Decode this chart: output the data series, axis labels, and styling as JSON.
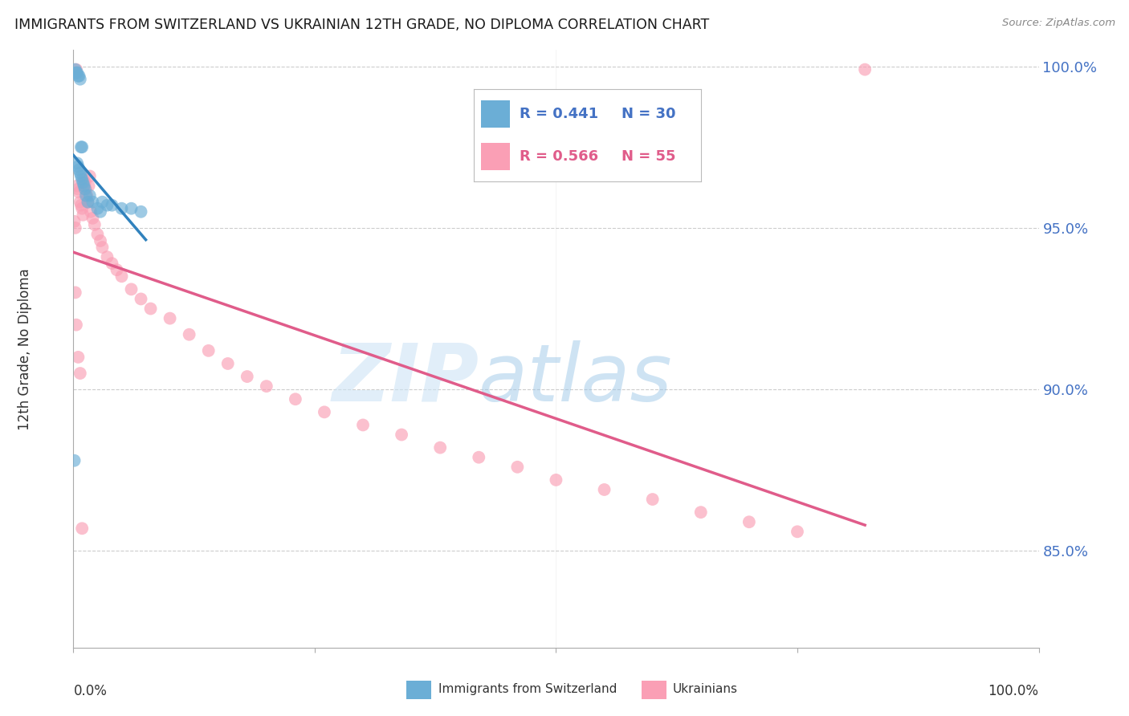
{
  "title": "IMMIGRANTS FROM SWITZERLAND VS UKRAINIAN 12TH GRADE, NO DIPLOMA CORRELATION CHART",
  "source": "Source: ZipAtlas.com",
  "ylabel": "12th Grade, No Diploma",
  "yaxis_values": [
    1.0,
    0.95,
    0.9,
    0.85
  ],
  "legend_blue_r": "R = 0.441",
  "legend_blue_n": "N = 30",
  "legend_pink_r": "R = 0.566",
  "legend_pink_n": "N = 55",
  "blue_color": "#6baed6",
  "pink_color": "#fa9fb5",
  "blue_line_color": "#3182bd",
  "pink_line_color": "#e05c8a",
  "blue_scatter_x": [
    0.001,
    0.002,
    0.003,
    0.004,
    0.004,
    0.005,
    0.005,
    0.006,
    0.006,
    0.007,
    0.007,
    0.008,
    0.008,
    0.009,
    0.009,
    0.01,
    0.011,
    0.012,
    0.013,
    0.015,
    0.017,
    0.02,
    0.025,
    0.028,
    0.03,
    0.035,
    0.04,
    0.05,
    0.06,
    0.07
  ],
  "blue_scatter_y": [
    0.878,
    0.999,
    0.998,
    0.998,
    0.97,
    0.997,
    0.969,
    0.997,
    0.968,
    0.996,
    0.967,
    0.975,
    0.966,
    0.975,
    0.965,
    0.964,
    0.963,
    0.962,
    0.96,
    0.958,
    0.96,
    0.958,
    0.956,
    0.955,
    0.958,
    0.957,
    0.957,
    0.956,
    0.956,
    0.955
  ],
  "pink_scatter_x": [
    0.001,
    0.002,
    0.003,
    0.004,
    0.005,
    0.006,
    0.007,
    0.008,
    0.009,
    0.01,
    0.011,
    0.012,
    0.013,
    0.014,
    0.015,
    0.016,
    0.017,
    0.018,
    0.02,
    0.022,
    0.025,
    0.028,
    0.03,
    0.035,
    0.04,
    0.045,
    0.05,
    0.06,
    0.07,
    0.08,
    0.1,
    0.12,
    0.14,
    0.16,
    0.18,
    0.2,
    0.23,
    0.26,
    0.3,
    0.34,
    0.38,
    0.42,
    0.46,
    0.5,
    0.55,
    0.6,
    0.65,
    0.7,
    0.75,
    0.82,
    0.002,
    0.003,
    0.005,
    0.007,
    0.009
  ],
  "pink_scatter_y": [
    0.952,
    0.95,
    0.999,
    0.963,
    0.962,
    0.961,
    0.958,
    0.957,
    0.956,
    0.954,
    0.965,
    0.964,
    0.962,
    0.96,
    0.958,
    0.963,
    0.966,
    0.955,
    0.953,
    0.951,
    0.948,
    0.946,
    0.944,
    0.941,
    0.939,
    0.937,
    0.935,
    0.931,
    0.928,
    0.925,
    0.922,
    0.917,
    0.912,
    0.908,
    0.904,
    0.901,
    0.897,
    0.893,
    0.889,
    0.886,
    0.882,
    0.879,
    0.876,
    0.872,
    0.869,
    0.866,
    0.862,
    0.859,
    0.856,
    0.999,
    0.93,
    0.92,
    0.91,
    0.905,
    0.857
  ],
  "xlim": [
    0.0,
    1.0
  ],
  "ylim": [
    0.82,
    1.005
  ],
  "background_color": "#ffffff",
  "grid_color": "#cccccc"
}
